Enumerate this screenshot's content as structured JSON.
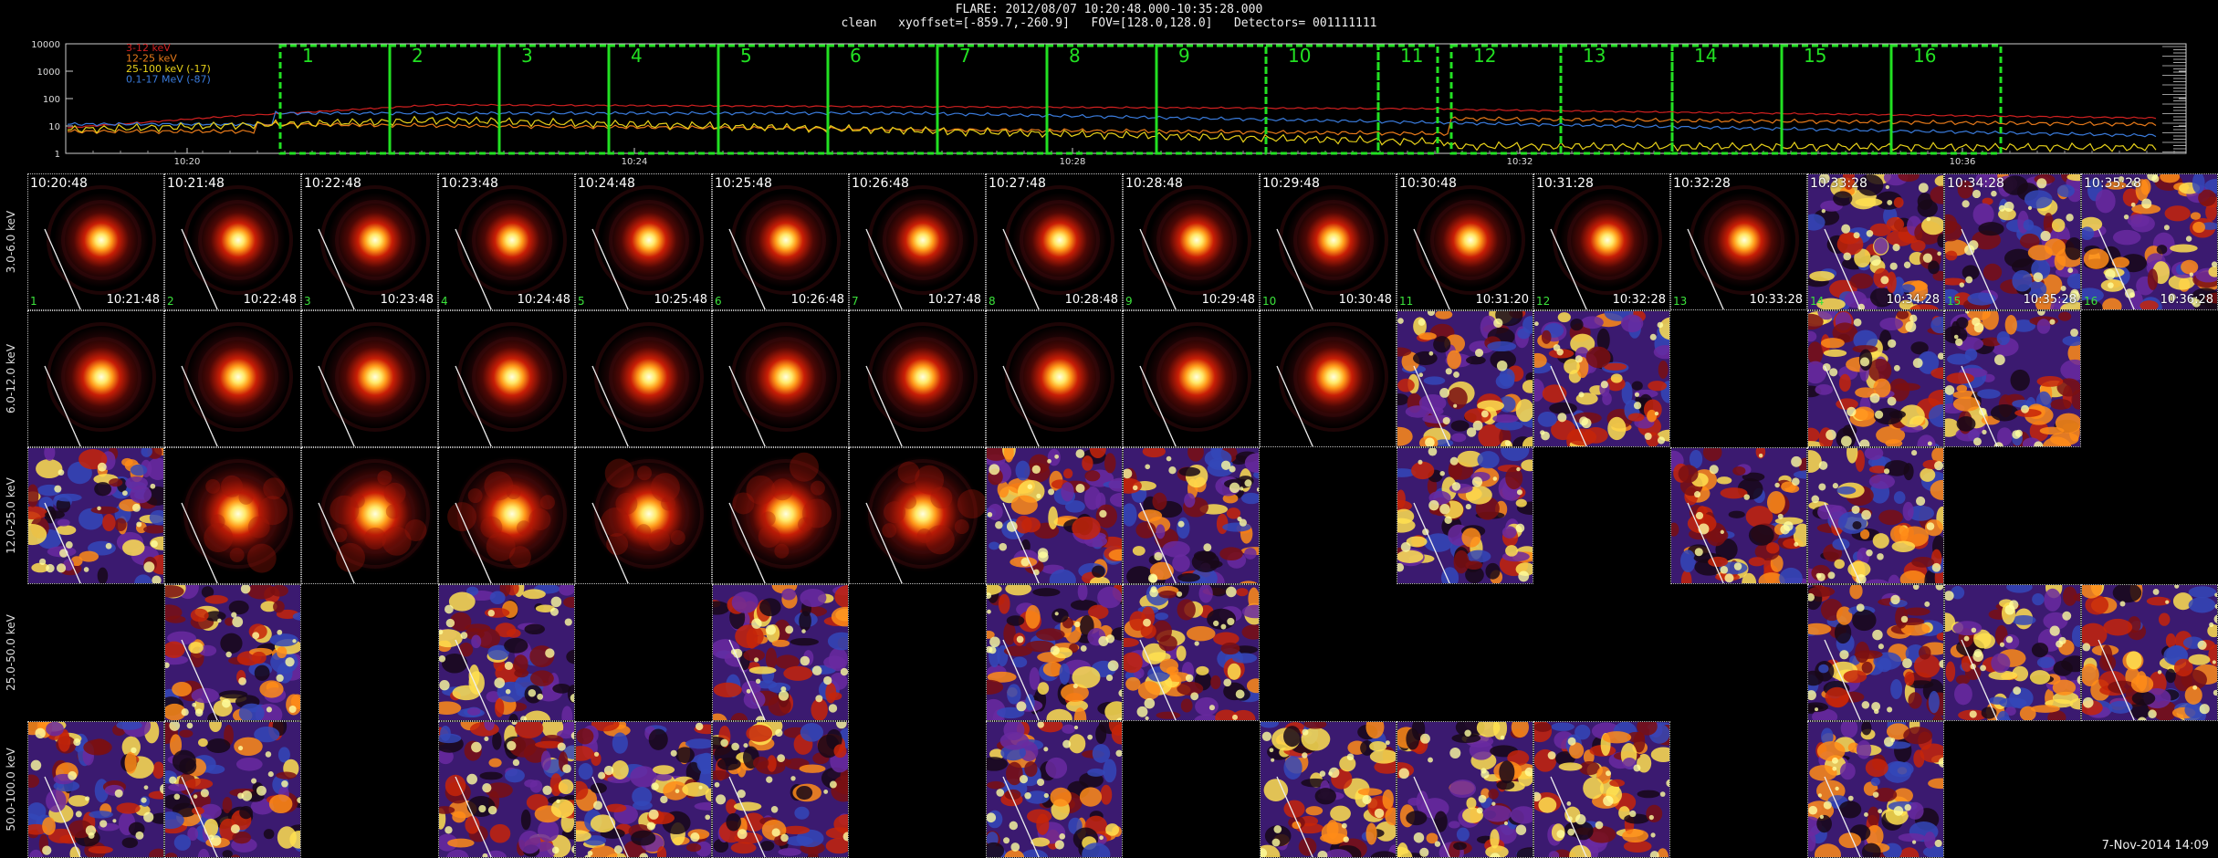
{
  "header": {
    "line1": "FLARE: 2012/08/07 10:20:48.000-10:35:28.000",
    "line2": "clean   xyoffset=[-859.7,-260.9]   FOV=[128.0,128.0]   Detectors= 001111111"
  },
  "footer_date": "7-Nov-2014 14:09",
  "lightcurve": {
    "y_ticks": [
      "10000",
      "1000",
      "100",
      "10",
      "1"
    ],
    "x_ticks": [
      "10:20",
      "10:24",
      "10:28",
      "10:32",
      "10:36"
    ],
    "legend": [
      {
        "label": "3-12 keV",
        "color": "#d02020"
      },
      {
        "label": "12-25 keV",
        "color": "#e87a1a"
      },
      {
        "label": "25-100 keV (-17)",
        "color": "#e8d21a"
      },
      {
        "label": "0.1-17 MeV (-87)",
        "color": "#3a7bdc"
      }
    ],
    "interval_labels": [
      "1",
      "2",
      "3",
      "4",
      "5",
      "6",
      "7",
      "8",
      "9",
      "10",
      "11",
      "12",
      "13",
      "14",
      "15",
      "16"
    ],
    "interval_color": "#22e022"
  },
  "energy_bands": [
    "3.0-6.0 keV",
    "6.0-12.0 keV",
    "12.0-25.0 keV",
    "25.0-50.0 keV",
    "50.0-100.0 keV"
  ],
  "start_times": [
    "10:20:48",
    "10:21:48",
    "10:22:48",
    "10:23:48",
    "10:24:48",
    "10:25:48",
    "10:26:48",
    "10:27:48",
    "10:28:48",
    "10:29:48",
    "10:30:48",
    "10:31:28",
    "10:32:28",
    "10:33:28",
    "10:34:28",
    "10:35:28"
  ],
  "end_times": [
    "10:21:48",
    "10:22:48",
    "10:23:48",
    "10:24:48",
    "10:25:48",
    "10:26:48",
    "10:27:48",
    "10:28:48",
    "10:29:48",
    "10:30:48",
    "10:31:20",
    "10:32:28",
    "10:33:28",
    "10:34:28",
    "10:35:28",
    "10:36:28"
  ],
  "interval_indices": [
    "1",
    "2",
    "3",
    "4",
    "5",
    "6",
    "7",
    "8",
    "9",
    "10",
    "11",
    "12",
    "13",
    "14",
    "15",
    "16"
  ],
  "panel_map": [
    [
      "S",
      "S",
      "S",
      "S",
      "S",
      "S",
      "S",
      "S",
      "S",
      "S",
      "S",
      "S",
      "S",
      "N",
      "N",
      "N"
    ],
    [
      "S",
      "S",
      "S",
      "S",
      "S",
      "S",
      "S",
      "S",
      "S",
      "S",
      "N",
      "N",
      "E",
      "N",
      "N",
      "E"
    ],
    [
      "N",
      "S",
      "S",
      "S",
      "S",
      "S",
      "S",
      "N",
      "N",
      "E",
      "N",
      "E",
      "N",
      "N",
      "E",
      "E"
    ],
    [
      "E",
      "N",
      "E",
      "N",
      "E",
      "N",
      "E",
      "N",
      "N",
      "E",
      "E",
      "E",
      "E",
      "N",
      "N",
      "N"
    ],
    [
      "N",
      "N",
      "E",
      "N",
      "N",
      "N",
      "E",
      "N",
      "E",
      "N",
      "N",
      "N",
      "E",
      "N",
      "E",
      "E"
    ]
  ]
}
